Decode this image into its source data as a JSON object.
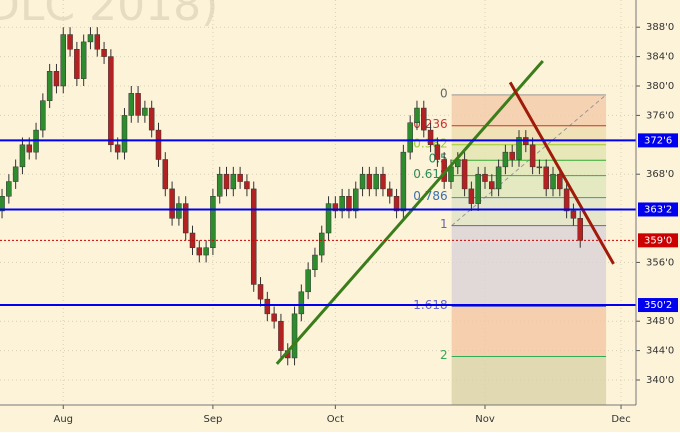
{
  "chart_data": {
    "type": "candlestick",
    "watermark": "DLC 2018)",
    "open": [
      363,
      365,
      367,
      369,
      372,
      371,
      374,
      378,
      382,
      380,
      387,
      385,
      381,
      386,
      387,
      385,
      384,
      372,
      371,
      376,
      379,
      376,
      377,
      374,
      370,
      366,
      362,
      364,
      360,
      358,
      357,
      358,
      365,
      368,
      366,
      368,
      367,
      366,
      353,
      351,
      349,
      348,
      344,
      343,
      349,
      352,
      355,
      357,
      360,
      364,
      363,
      365,
      363,
      366,
      368,
      366,
      368,
      366,
      365,
      363,
      371,
      375,
      377,
      374,
      372,
      370,
      367,
      369,
      370,
      366,
      364,
      368,
      367,
      366,
      369,
      371,
      370,
      373,
      372,
      369,
      369,
      366,
      368,
      366,
      363,
      362
    ],
    "high": [
      366,
      368,
      370,
      373,
      373,
      375,
      379,
      383,
      383,
      388,
      388,
      386,
      387,
      388,
      388,
      386,
      385,
      373,
      377,
      380,
      380,
      378,
      378,
      375,
      371,
      367,
      365,
      365,
      361,
      359,
      359,
      366,
      369,
      369,
      369,
      369,
      368,
      367,
      354,
      352,
      350,
      349,
      345,
      350,
      353,
      356,
      358,
      361,
      365,
      365,
      366,
      366,
      367,
      369,
      369,
      369,
      369,
      367,
      366,
      372,
      376,
      378,
      378,
      375,
      373,
      371,
      370,
      371,
      371,
      367,
      369,
      369,
      368,
      370,
      372,
      372,
      374,
      374,
      373,
      370,
      370,
      369,
      369,
      367,
      364,
      363
    ],
    "low": [
      362,
      364,
      366,
      368,
      370,
      370,
      373,
      377,
      379,
      379,
      384,
      380,
      380,
      385,
      384,
      383,
      371,
      370,
      370,
      375,
      375,
      375,
      373,
      369,
      365,
      361,
      361,
      359,
      357,
      356,
      356,
      357,
      364,
      365,
      365,
      366,
      365,
      352,
      350,
      348,
      347,
      343,
      342,
      342,
      348,
      351,
      354,
      356,
      359,
      362,
      362,
      362,
      362,
      365,
      365,
      365,
      365,
      364,
      362,
      362,
      370,
      374,
      373,
      371,
      369,
      366,
      366,
      368,
      365,
      363,
      363,
      366,
      365,
      365,
      368,
      369,
      369,
      371,
      368,
      368,
      365,
      365,
      365,
      362,
      361,
      358
    ],
    "close": [
      365,
      367,
      369,
      372,
      371,
      374,
      378,
      382,
      380,
      387,
      385,
      381,
      386,
      387,
      385,
      384,
      372,
      371,
      376,
      379,
      376,
      377,
      374,
      370,
      366,
      362,
      364,
      360,
      358,
      357,
      358,
      365,
      368,
      366,
      368,
      367,
      366,
      353,
      351,
      349,
      348,
      344,
      343,
      349,
      352,
      355,
      357,
      360,
      364,
      363,
      365,
      363,
      366,
      368,
      366,
      368,
      366,
      365,
      363,
      371,
      375,
      377,
      374,
      372,
      370,
      367,
      369,
      370,
      366,
      364,
      368,
      367,
      366,
      369,
      371,
      370,
      373,
      372,
      369,
      369,
      366,
      368,
      366,
      363,
      362,
      359
    ],
    "up_color": "#2e8b2e",
    "down_color": "#b22222",
    "xlim": [
      -0.3,
      93.2
    ],
    "ylim": [
      336.6,
      391.7
    ],
    "xticks": [
      {
        "value": 9,
        "label": "Aug"
      },
      {
        "value": 31,
        "label": "Sep"
      },
      {
        "value": 49,
        "label": "Oct"
      },
      {
        "value": 71,
        "label": "Nov"
      },
      {
        "value": 91,
        "label": "Dec"
      }
    ],
    "yticks": [
      {
        "value": 340,
        "label": "340'0"
      },
      {
        "value": 344,
        "label": "344'0"
      },
      {
        "value": 348,
        "label": "348'0"
      },
      {
        "value": 356,
        "label": "356'0"
      },
      {
        "value": 368,
        "label": "368'0"
      },
      {
        "value": 376,
        "label": "376'0"
      },
      {
        "value": 380,
        "label": "380'0"
      },
      {
        "value": 384,
        "label": "384'0"
      },
      {
        "value": 388,
        "label": "388'0"
      }
    ],
    "grid": true,
    "hlines": [
      {
        "value": 372.6,
        "label": "372'6",
        "color": "#0000ee",
        "style": "solid"
      },
      {
        "value": 363.2,
        "label": "363'2",
        "color": "#0000ee",
        "style": "solid"
      },
      {
        "value": 350.2,
        "label": "350'2",
        "color": "#0000ee",
        "style": "solid"
      },
      {
        "value": 359.0,
        "label": "359'0",
        "color": "#cc0000",
        "style": "dotted"
      }
    ],
    "trendlines": [
      {
        "x": [
          40.4,
          79.5
        ],
        "y": [
          342.2,
          383.4
        ],
        "color": "#3a7d1a"
      },
      {
        "x": [
          74.7,
          89.9
        ],
        "y": [
          380.5,
          355.8
        ],
        "color": "#a01a0a"
      }
    ],
    "fib": {
      "x": [
        66.1,
        88.8
      ],
      "start": 378.8,
      "end": 361,
      "levels": [
        0,
        0.236,
        0.382,
        0.5,
        0.618,
        0.786,
        1,
        1.618,
        2
      ],
      "band_colors": [
        "#f3c9a8",
        "#eedcae",
        "#e2e3b0",
        "#dfe6b6",
        "#dde6bc",
        "#e0e2c8",
        "#d9d2d8",
        "#f2c6a4"
      ],
      "line_colors": [
        "#999999",
        "#cc3333",
        "#9acd32",
        "#33aa33",
        "#33aa55",
        "#3399aa",
        "#666699",
        "#6666bb",
        "#33aa55"
      ],
      "label_colors": [
        "#666666",
        "#cc3333",
        "#9acd32",
        "#2e8b57",
        "#2e8b57",
        "#3a70b0",
        "#6666aa",
        "#6666cc",
        "#33aa55"
      ]
    }
  }
}
